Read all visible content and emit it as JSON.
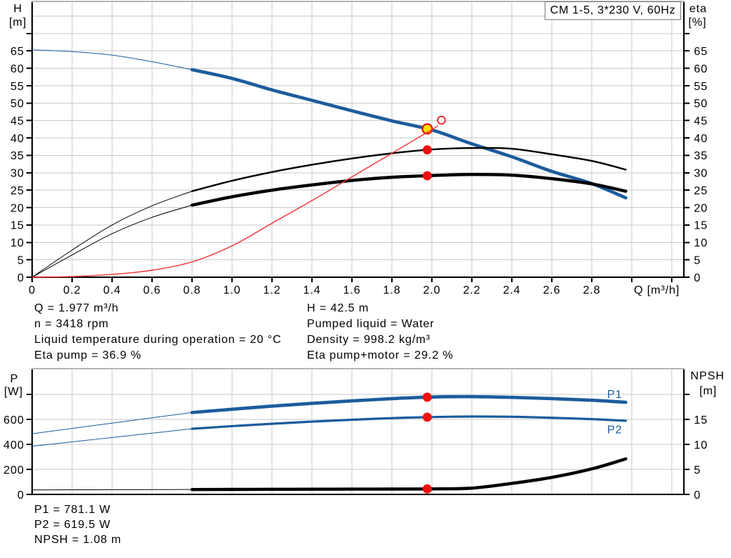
{
  "colors": {
    "curve_blue": "#1c5c9c",
    "curve_black": "#000000",
    "curve_red": "#f23333",
    "marker_red": "#ee1111",
    "marker_yellow": "#ffdf00",
    "grid": "#c9c9c9",
    "frame_top": "#b4b7b9",
    "axis": "#000000"
  },
  "title_box": {
    "label": "CM 1-5, 3*230 V, 60Hz"
  },
  "info_top": {
    "left": [
      "Q = 1.977 m³/h",
      "n = 3418 rpm",
      "Liquid temperature during operation = 20 °C",
      "Eta pump = 36.9 %"
    ],
    "right": [
      "H = 42.5 m",
      "Pumped liquid = Water",
      "Density = 998.2 kg/m³",
      "Eta pump+motor = 29.2 %"
    ]
  },
  "info_bottom": [
    "P1 = 781.1 W",
    "P2 = 619.5 W",
    "NPSH = 1.08 m"
  ],
  "chart_data": [
    {
      "name": "head-efficiency-chart",
      "type": "line",
      "title": "CM 1-5, 3*230 V, 60Hz",
      "x_axis": {
        "title": "Q [m³/h]",
        "min": 0,
        "max": 3.261,
        "tick_step": 0.2,
        "label_last": 2.8,
        "show_labels": true
      },
      "y_left": {
        "title": "H",
        "unit": "[m]",
        "min": 0,
        "max": 79,
        "tick_step": 5,
        "label_last": 65,
        "tick_last": 70,
        "grid_last": 75
      },
      "y_right": {
        "title": "eta",
        "unit": "[%]",
        "min": 0,
        "max": 79,
        "tick_step": 5,
        "label_last": 65,
        "tick_last": 70
      },
      "series": [
        {
          "id": "H",
          "axis": "left",
          "color": "curve_blue",
          "thin_until": 0.8,
          "thin_width": 1,
          "width": 4.6,
          "points": [
            [
              0,
              65.3
            ],
            [
              0.2,
              64.8
            ],
            [
              0.4,
              63.8
            ],
            [
              0.6,
              61.9
            ],
            [
              0.8,
              59.6
            ],
            [
              1,
              57.1
            ],
            [
              1.2,
              53.8
            ],
            [
              1.4,
              50.8
            ],
            [
              1.6,
              47.8
            ],
            [
              1.8,
              44.9
            ],
            [
              2,
              42.3
            ],
            [
              2.2,
              38.3
            ],
            [
              2.4,
              34.6
            ],
            [
              2.6,
              30.4
            ],
            [
              2.8,
              26.9
            ],
            [
              2.97,
              22.8
            ]
          ]
        },
        {
          "id": "eta-pump",
          "axis": "left",
          "color": "curve_black",
          "thin_until": 0.8,
          "thin_width": 1,
          "width": 2.4,
          "points": [
            [
              0,
              0
            ],
            [
              0.2,
              7.8
            ],
            [
              0.4,
              15
            ],
            [
              0.6,
              20.5
            ],
            [
              0.8,
              24.7
            ],
            [
              1,
              27.7
            ],
            [
              1.2,
              30.2
            ],
            [
              1.4,
              32.3
            ],
            [
              1.6,
              34.1
            ],
            [
              1.8,
              35.6
            ],
            [
              2,
              36.7
            ],
            [
              2.2,
              37.1
            ],
            [
              2.4,
              36.9
            ],
            [
              2.6,
              35.3
            ],
            [
              2.8,
              33.4
            ],
            [
              2.97,
              30.9
            ]
          ]
        },
        {
          "id": "eta-pump-motor",
          "axis": "left",
          "color": "curve_black",
          "thin_until": 0.8,
          "thin_width": 1,
          "width": 4.4,
          "points": [
            [
              0,
              0
            ],
            [
              0.2,
              6.4
            ],
            [
              0.4,
              12.5
            ],
            [
              0.6,
              17.2
            ],
            [
              0.8,
              20.7
            ],
            [
              1,
              23.1
            ],
            [
              1.2,
              25
            ],
            [
              1.4,
              26.5
            ],
            [
              1.6,
              27.8
            ],
            [
              1.8,
              28.7
            ],
            [
              2,
              29.2
            ],
            [
              2.2,
              29.5
            ],
            [
              2.4,
              29.3
            ],
            [
              2.6,
              28.3
            ],
            [
              2.8,
              26.8
            ],
            [
              2.97,
              24.7
            ]
          ]
        },
        {
          "id": "npsh-limit",
          "axis": "left",
          "color": "curve_red",
          "thin_until": null,
          "width": 1.4,
          "late": true,
          "points": [
            [
              0,
              0
            ],
            [
              0.2,
              0.2
            ],
            [
              0.4,
              0.8
            ],
            [
              0.6,
              2.0
            ],
            [
              0.8,
              4.4
            ],
            [
              1,
              9
            ],
            [
              1.2,
              15.5
            ],
            [
              1.4,
              22
            ],
            [
              1.6,
              28.8
            ],
            [
              1.8,
              35.6
            ],
            [
              2,
              42.4
            ],
            [
              2.03,
              43.6
            ]
          ]
        }
      ],
      "markers": [
        {
          "series": "H",
          "q": 1.977,
          "style": "operating-point",
          "phase": 1
        },
        {
          "series": "eta-pump",
          "q": 1.977,
          "style": "red-dot",
          "phase": 2
        },
        {
          "series": "eta-pump-motor",
          "q": 1.977,
          "style": "red-dot",
          "phase": 2
        },
        {
          "style": "open-circle",
          "q": 2.048,
          "v": 45.1,
          "phase": 2
        }
      ]
    },
    {
      "name": "power-npsh-chart",
      "type": "line",
      "x_axis": {
        "title": null,
        "min": 0,
        "max": 3.261,
        "tick_step": 0.2,
        "show_labels": false
      },
      "y_left": {
        "title": "P",
        "unit": "[W]",
        "min": 0,
        "max": 1000,
        "tick_step": 200,
        "label_last": 600,
        "tick_last": 800,
        "grid_last": 800
      },
      "y_right": {
        "title": "NPSH",
        "unit": "[m]",
        "min": 0,
        "max": 25,
        "tick_step": 5,
        "label_last": 15,
        "tick_last": 20
      },
      "series": [
        {
          "id": "P1",
          "axis": "left",
          "color": "curve_blue",
          "thin_until": 0.8,
          "thin_width": 1,
          "width": 4.6,
          "label": {
            "text": "P1",
            "q": 2.915,
            "v": 806
          },
          "points": [
            [
              0,
              485
            ],
            [
              0.2,
              528
            ],
            [
              0.4,
              570
            ],
            [
              0.6,
              613
            ],
            [
              0.8,
              655
            ],
            [
              1,
              681
            ],
            [
              1.2,
              706
            ],
            [
              1.4,
              728
            ],
            [
              1.6,
              748
            ],
            [
              1.8,
              766
            ],
            [
              2,
              779
            ],
            [
              2.2,
              782
            ],
            [
              2.4,
              776
            ],
            [
              2.6,
              766
            ],
            [
              2.8,
              753
            ],
            [
              2.97,
              737
            ]
          ]
        },
        {
          "id": "P2",
          "axis": "left",
          "color": "curve_blue",
          "thin_until": 0.8,
          "thin_width": 1,
          "width": 3.2,
          "label": {
            "text": "P2",
            "q": 2.915,
            "v": 524
          },
          "points": [
            [
              0,
              385
            ],
            [
              0.2,
              420
            ],
            [
              0.4,
              455
            ],
            [
              0.6,
              490
            ],
            [
              0.8,
              525
            ],
            [
              1,
              546
            ],
            [
              1.2,
              565
            ],
            [
              1.4,
              582
            ],
            [
              1.6,
              597
            ],
            [
              1.8,
              610
            ],
            [
              2,
              619
            ],
            [
              2.2,
              623
            ],
            [
              2.4,
              621
            ],
            [
              2.6,
              613
            ],
            [
              2.8,
              602
            ],
            [
              2.97,
              589
            ]
          ]
        },
        {
          "id": "NPSH",
          "axis": "right",
          "color": "curve_black",
          "thin_until": 0.8,
          "thin_width": 1,
          "width": 4.4,
          "points": [
            [
              0,
              0.9
            ],
            [
              0.2,
              0.92
            ],
            [
              0.4,
              0.94
            ],
            [
              0.6,
              0.96
            ],
            [
              0.8,
              0.98
            ],
            [
              1,
              1
            ],
            [
              1.2,
              1.02
            ],
            [
              1.4,
              1.04
            ],
            [
              1.6,
              1.06
            ],
            [
              1.8,
              1.07
            ],
            [
              2,
              1.1
            ],
            [
              2.2,
              1.25
            ],
            [
              2.4,
              2.2
            ],
            [
              2.6,
              3.4
            ],
            [
              2.8,
              5.1
            ],
            [
              2.97,
              7.1
            ]
          ]
        }
      ],
      "markers": [
        {
          "series": "P1",
          "q": 1.977,
          "style": "red-dot",
          "phase": 2
        },
        {
          "series": "P2",
          "q": 1.977,
          "style": "red-dot",
          "phase": 2
        },
        {
          "series": "NPSH",
          "q": 1.977,
          "style": "red-dot",
          "phase": 2
        }
      ]
    }
  ]
}
